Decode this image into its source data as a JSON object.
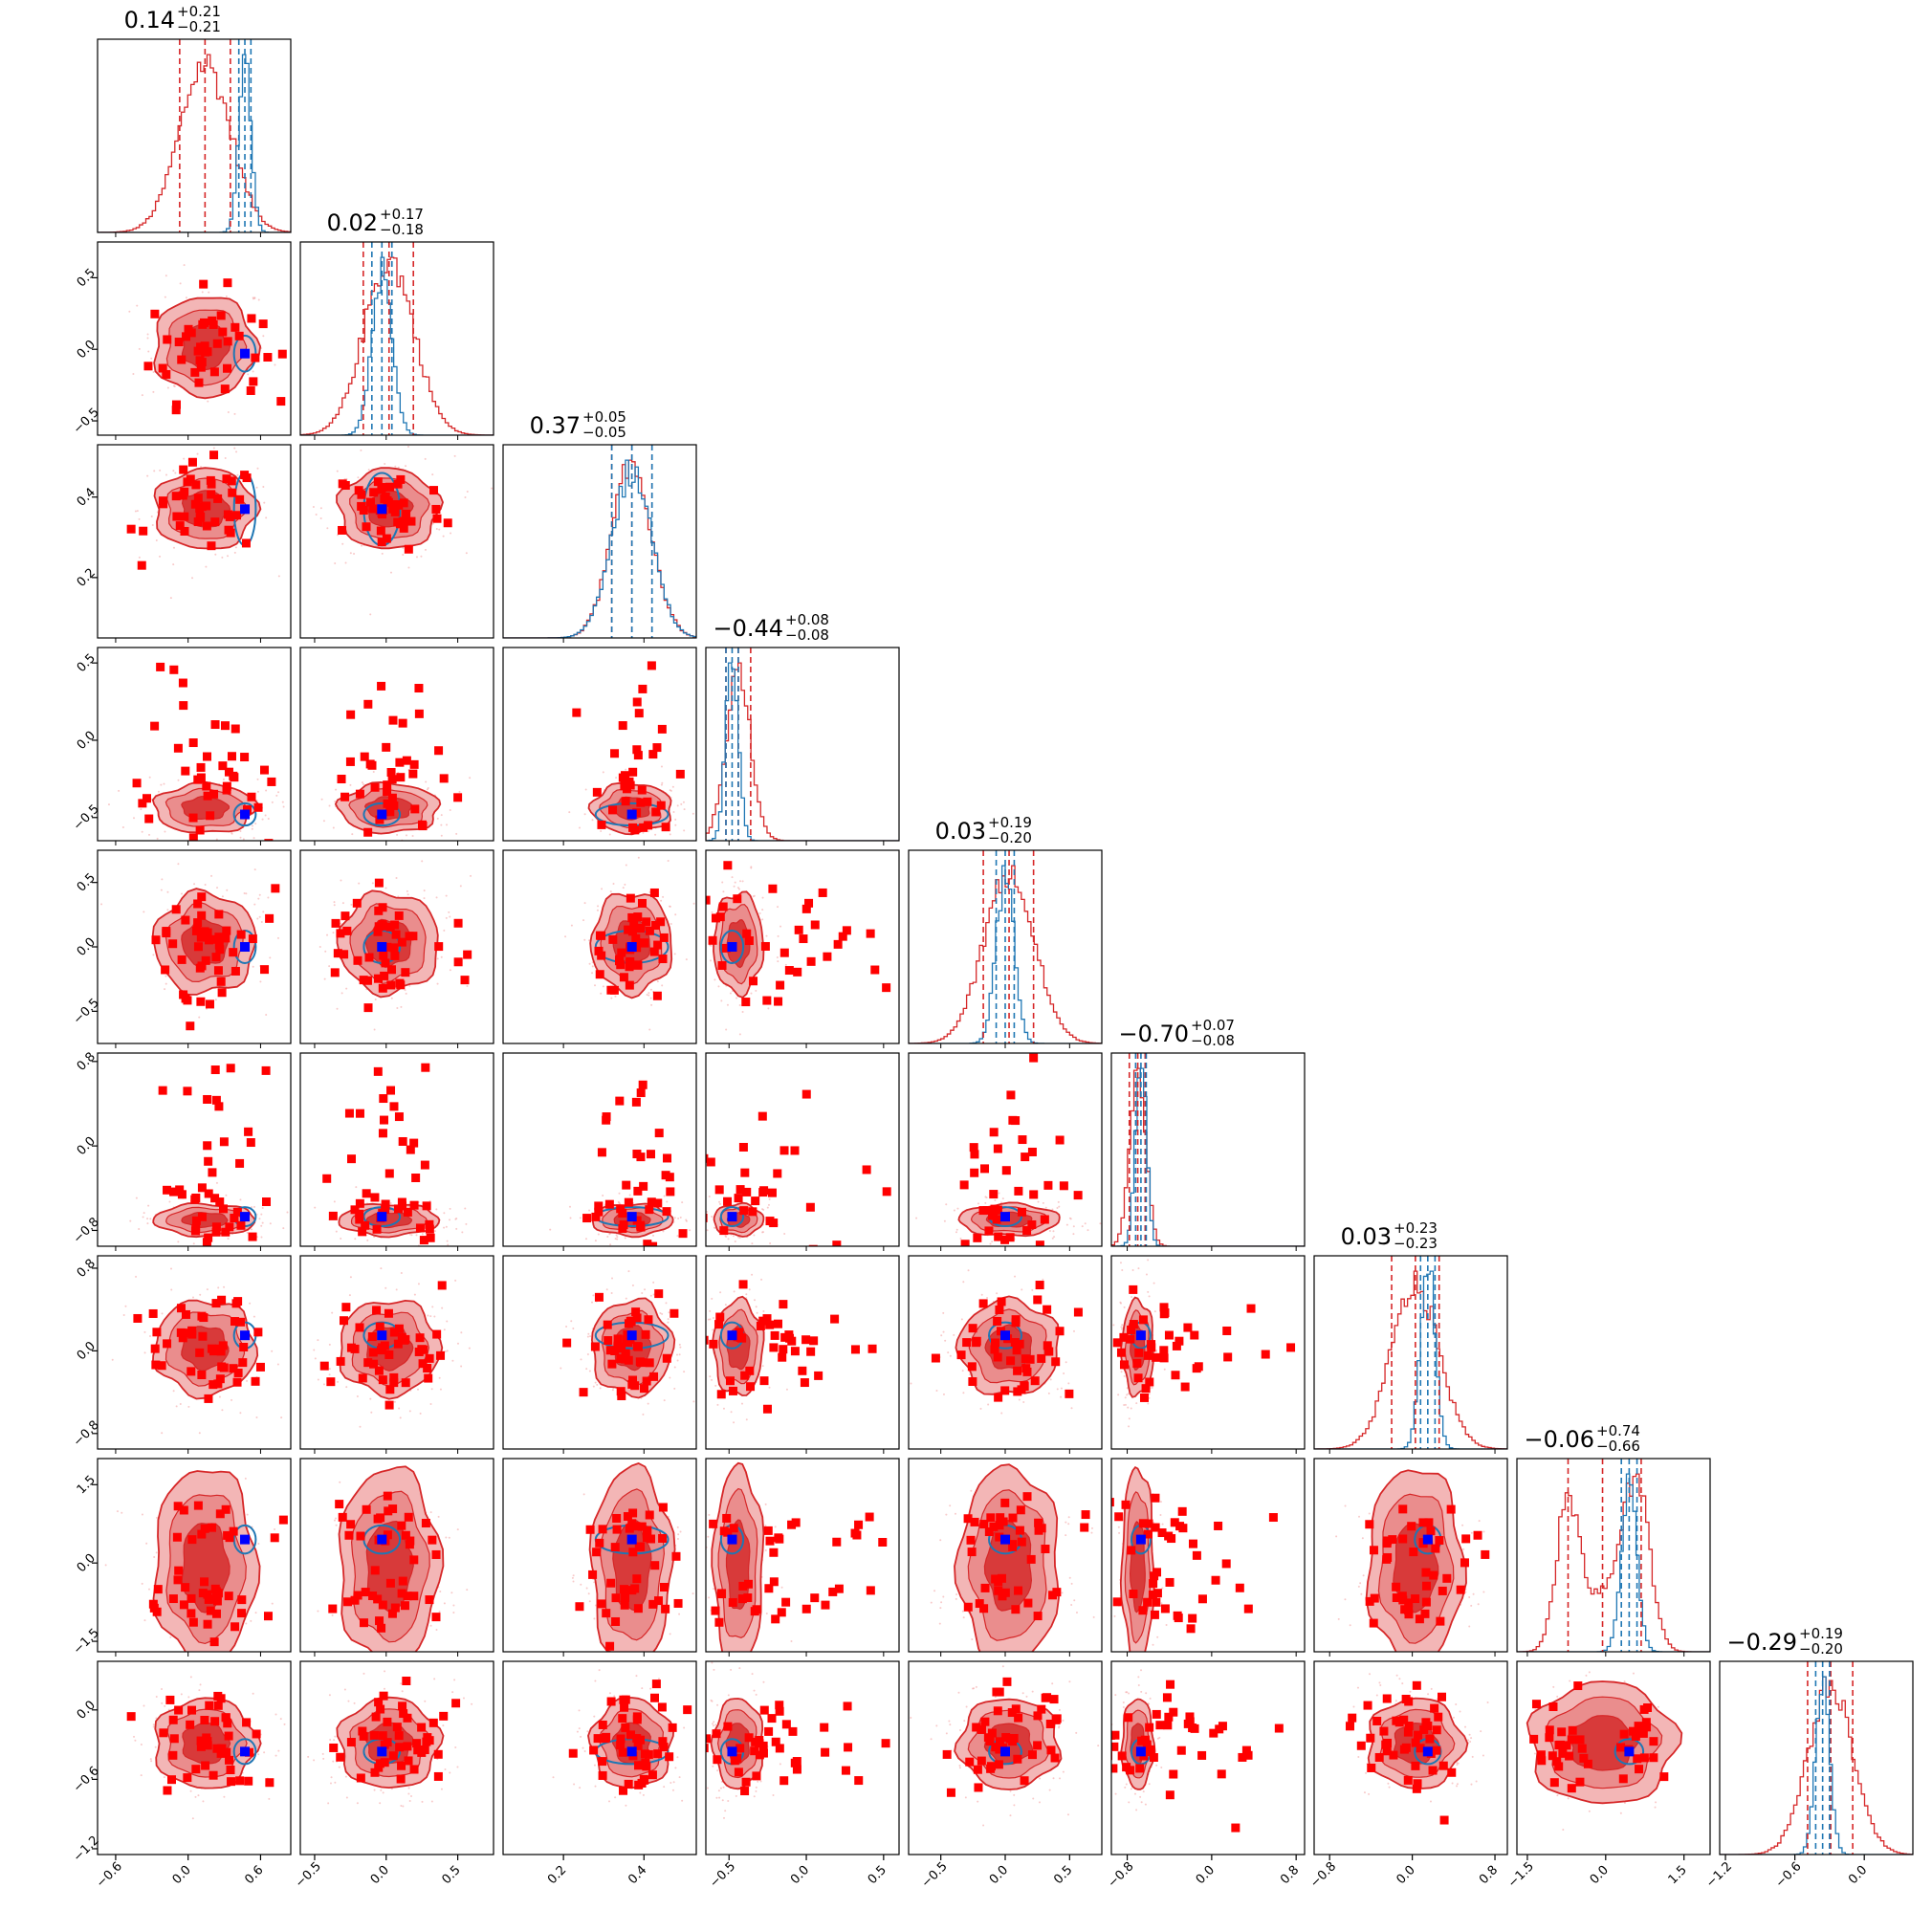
{
  "chart_data": {
    "type": "corner",
    "dimensions": 9,
    "grid": false,
    "series": [
      {
        "name": "",
        "color": "#d62728",
        "style": "filled contours + histograms + square markers"
      },
      {
        "name": "",
        "color": "#1f77b4",
        "style": "contour lines + narrow histograms"
      }
    ],
    "marker_color": "#0000ff",
    "titles": [
      {
        "median": "0.14",
        "plus": "+0.21",
        "minus": "−0.21"
      },
      {
        "median": "0.02",
        "plus": "+0.17",
        "minus": "−0.18"
      },
      {
        "median": "0.37",
        "plus": "+0.05",
        "minus": "−0.05"
      },
      {
        "median": "−0.44",
        "plus": "+0.08",
        "minus": "−0.08"
      },
      {
        "median": "0.03",
        "plus": "+0.19",
        "minus": "−0.20"
      },
      {
        "median": "−0.70",
        "plus": "+0.07",
        "minus": "−0.08"
      },
      {
        "median": "0.03",
        "plus": "+0.23",
        "minus": "−0.23"
      },
      {
        "median": "−0.06",
        "plus": "+0.74",
        "minus": "−0.66"
      },
      {
        "median": "−0.29",
        "plus": "+0.19",
        "minus": "−0.20"
      }
    ],
    "axes": [
      {
        "range": [
          -0.75,
          0.85
        ],
        "ticks": [
          -0.6,
          0.0,
          0.6
        ],
        "tick_labels": [
          "−0.6",
          "0.0",
          "0.6"
        ],
        "truth": 0.47,
        "red_q": [
          -0.07,
          0.14,
          0.35
        ],
        "blue_q": [
          0.42,
          0.47,
          0.52
        ]
      },
      {
        "range": [
          -0.6,
          0.75
        ],
        "ticks": [
          -0.5,
          0.0,
          0.5
        ],
        "tick_labels": [
          "−0.5",
          "0.0",
          "0.5"
        ],
        "truth": -0.03,
        "red_q": [
          -0.16,
          0.02,
          0.19
        ],
        "blue_q": [
          -0.1,
          -0.03,
          0.04
        ]
      },
      {
        "range": [
          0.05,
          0.53
        ],
        "ticks": [
          0.2,
          0.4
        ],
        "tick_labels": [
          "0.2",
          "0.4"
        ],
        "truth": 0.37,
        "red_q": [
          0.32,
          0.37,
          0.42
        ],
        "blue_q": [
          0.32,
          0.37,
          0.42
        ]
      },
      {
        "range": [
          -0.65,
          0.6
        ],
        "ticks": [
          -0.5,
          0.0,
          0.5
        ],
        "tick_labels": [
          "−0.5",
          "0.0",
          "0.5"
        ],
        "truth": -0.48,
        "red_q": [
          -0.52,
          -0.44,
          -0.36
        ],
        "blue_q": [
          -0.52,
          -0.48,
          -0.44
        ]
      },
      {
        "range": [
          -0.75,
          0.75
        ],
        "ticks": [
          -0.5,
          0.0,
          0.5
        ],
        "tick_labels": [
          "−0.5",
          "0.0",
          "0.5"
        ],
        "truth": 0.0,
        "red_q": [
          -0.17,
          0.03,
          0.22
        ],
        "blue_q": [
          -0.07,
          0.0,
          0.07
        ]
      },
      {
        "range": [
          -0.95,
          0.88
        ],
        "ticks": [
          -0.8,
          0.0,
          0.8
        ],
        "tick_labels": [
          "−0.8",
          "0.0",
          "0.8"
        ],
        "truth": -0.67,
        "red_q": [
          -0.78,
          -0.7,
          -0.63
        ],
        "blue_q": [
          -0.72,
          -0.67,
          -0.62
        ]
      },
      {
        "range": [
          -0.95,
          0.92
        ],
        "ticks": [
          -0.8,
          0.0,
          0.8
        ],
        "tick_labels": [
          "−0.8",
          "0.0",
          "0.8"
        ],
        "truth": 0.15,
        "red_q": [
          -0.2,
          0.03,
          0.26
        ],
        "blue_q": [
          0.08,
          0.15,
          0.22
        ]
      },
      {
        "range": [
          -1.7,
          2.0
        ],
        "ticks": [
          -1.5,
          0.0,
          1.5
        ],
        "tick_labels": [
          "−1.5",
          "0.0",
          "1.5"
        ],
        "truth": 0.45,
        "red_q": [
          -0.72,
          -0.06,
          0.68
        ],
        "blue_q": [
          0.3,
          0.45,
          0.6
        ]
      },
      {
        "range": [
          -1.25,
          0.42
        ],
        "ticks": [
          -1.2,
          -0.6,
          0.0
        ],
        "tick_labels": [
          "−1.2",
          "−0.6",
          "0.0"
        ],
        "truth": -0.36,
        "red_q": [
          -0.49,
          -0.29,
          -0.1
        ],
        "blue_q": [
          -0.42,
          -0.36,
          -0.3
        ]
      }
    ]
  }
}
